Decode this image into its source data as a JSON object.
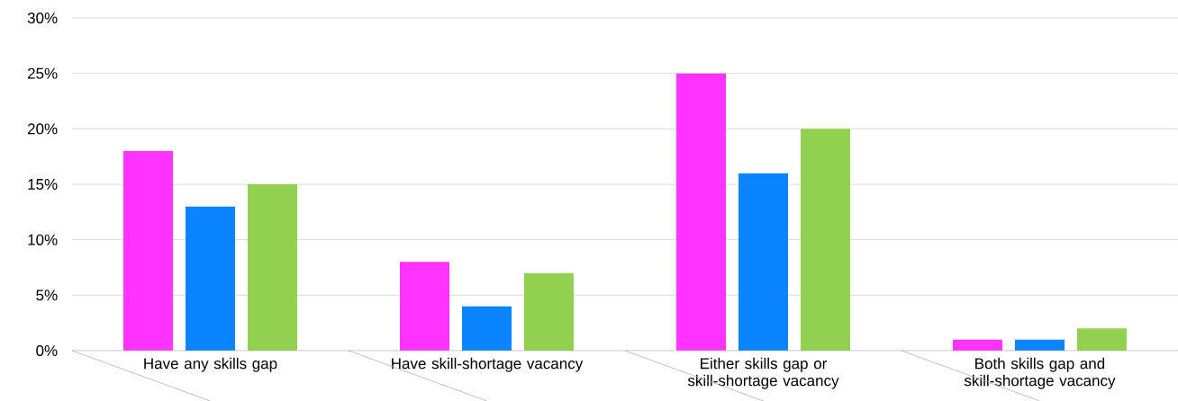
{
  "chart_data": {
    "type": "bar",
    "categories": [
      "Have any skills gap",
      "Have skill-shortage vacancy",
      "Either skills gap or skill-shortage vacancy",
      "Both skills gap and skill-shortage vacancy"
    ],
    "series": [
      {
        "color": "#ff33ff",
        "values": [
          18,
          8,
          25,
          1
        ]
      },
      {
        "color": "#0a84ff",
        "values": [
          13,
          4,
          16,
          1
        ]
      },
      {
        "color": "#92d050",
        "values": [
          15,
          7,
          20,
          2
        ]
      }
    ],
    "ylim": [
      0,
      30
    ],
    "yticks": [
      {
        "value": 0,
        "label": "0%"
      },
      {
        "value": 5,
        "label": "5%"
      },
      {
        "value": 10,
        "label": "10%"
      },
      {
        "value": 15,
        "label": "15%"
      },
      {
        "value": 20,
        "label": "20%"
      },
      {
        "value": 25,
        "label": "25%"
      },
      {
        "value": 30,
        "label": "30%"
      }
    ],
    "grid": "y"
  }
}
